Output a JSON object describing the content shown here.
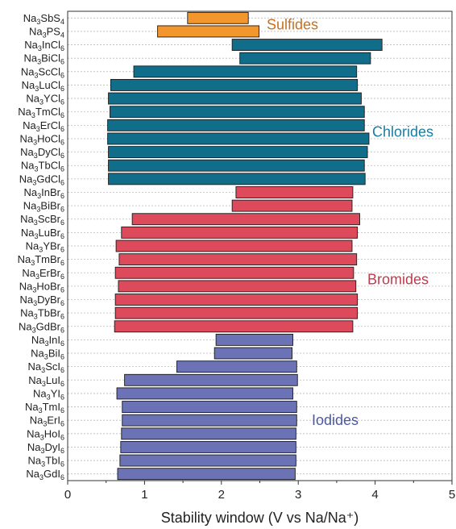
{
  "chart_data": {
    "type": "bar",
    "orientation": "horizontal-floating",
    "xlabel": "Stability window (V vs Na/Na⁺)",
    "xlim": [
      0,
      5
    ],
    "xticks": [
      "0",
      "1",
      "2",
      "3",
      "4",
      "5"
    ],
    "grid": "horizontal dotted",
    "groups": [
      {
        "name": "Sulfides",
        "color": "#F4962E",
        "label_color": "#C9701C",
        "items": [
          {
            "formula": "Na3SbS4",
            "base": "Na",
            "n1": "3",
            "mid": "SbS",
            "n2": "4",
            "low": 1.56,
            "high": 2.35
          },
          {
            "formula": "Na3PS4",
            "base": "Na",
            "n1": "3",
            "mid": "PS",
            "n2": "4",
            "low": 1.17,
            "high": 2.49
          }
        ]
      },
      {
        "name": "Chlorides",
        "color": "#116E8A",
        "label_color": "#1B7DA0",
        "items": [
          {
            "formula": "Na3InCl6",
            "base": "Na",
            "n1": "3",
            "mid": "InCl",
            "n2": "6",
            "low": 2.14,
            "high": 4.09
          },
          {
            "formula": "Na3BiCl6",
            "base": "Na",
            "n1": "3",
            "mid": "BiCl",
            "n2": "6",
            "low": 2.24,
            "high": 3.94
          },
          {
            "formula": "Na3ScCl6",
            "base": "Na",
            "n1": "3",
            "mid": "ScCl",
            "n2": "6",
            "low": 0.86,
            "high": 3.76
          },
          {
            "formula": "Na3LuCl6",
            "base": "Na",
            "n1": "3",
            "mid": "LuCl",
            "n2": "6",
            "low": 0.56,
            "high": 3.77
          },
          {
            "formula": "Na3YCl6",
            "base": "Na",
            "n1": "3",
            "mid": "YCl",
            "n2": "6",
            "low": 0.53,
            "high": 3.82
          },
          {
            "formula": "Na3TmCl6",
            "base": "Na",
            "n1": "3",
            "mid": "TmCl",
            "n2": "6",
            "low": 0.55,
            "high": 3.86
          },
          {
            "formula": "Na3ErCl6",
            "base": "Na",
            "n1": "3",
            "mid": "ErCl",
            "n2": "6",
            "low": 0.52,
            "high": 3.86
          },
          {
            "formula": "Na3HoCl6",
            "base": "Na",
            "n1": "3",
            "mid": "HoCl",
            "n2": "6",
            "low": 0.52,
            "high": 3.92
          },
          {
            "formula": "Na3DyCl6",
            "base": "Na",
            "n1": "3",
            "mid": "DyCl",
            "n2": "6",
            "low": 0.53,
            "high": 3.9
          },
          {
            "formula": "Na3TbCl6",
            "base": "Na",
            "n1": "3",
            "mid": "TbCl",
            "n2": "6",
            "low": 0.53,
            "high": 3.86
          },
          {
            "formula": "Na3GdCl6",
            "base": "Na",
            "n1": "3",
            "mid": "GdCl",
            "n2": "6",
            "low": 0.53,
            "high": 3.87
          }
        ]
      },
      {
        "name": "Bromides",
        "color": "#DC4A5C",
        "label_color": "#C23A4C",
        "items": [
          {
            "formula": "Na3InBr6",
            "base": "Na",
            "n1": "3",
            "mid": "InBr",
            "n2": "6",
            "low": 2.19,
            "high": 3.71
          },
          {
            "formula": "Na3BiBr6",
            "base": "Na",
            "n1": "3",
            "mid": "BiBr",
            "n2": "6",
            "low": 2.14,
            "high": 3.7
          },
          {
            "formula": "Na3ScBr6",
            "base": "Na",
            "n1": "3",
            "mid": "ScBr",
            "n2": "6",
            "low": 0.84,
            "high": 3.8
          },
          {
            "formula": "Na3LuBr6",
            "base": "Na",
            "n1": "3",
            "mid": "LuBr",
            "n2": "6",
            "low": 0.7,
            "high": 3.77
          },
          {
            "formula": "Na3YBr6",
            "base": "Na",
            "n1": "3",
            "mid": "YBr",
            "n2": "6",
            "low": 0.63,
            "high": 3.7
          },
          {
            "formula": "Na3TmBr6",
            "base": "Na",
            "n1": "3",
            "mid": "TmBr",
            "n2": "6",
            "low": 0.67,
            "high": 3.76
          },
          {
            "formula": "Na3ErBr6",
            "base": "Na",
            "n1": "3",
            "mid": "ErBr",
            "n2": "6",
            "low": 0.62,
            "high": 3.72
          },
          {
            "formula": "Na3HoBr6",
            "base": "Na",
            "n1": "3",
            "mid": "HoBr",
            "n2": "6",
            "low": 0.66,
            "high": 3.75
          },
          {
            "formula": "Na3DyBr6",
            "base": "Na",
            "n1": "3",
            "mid": "DyBr",
            "n2": "6",
            "low": 0.62,
            "high": 3.77
          },
          {
            "formula": "Na3TbBr6",
            "base": "Na",
            "n1": "3",
            "mid": "TbBr",
            "n2": "6",
            "low": 0.62,
            "high": 3.77
          },
          {
            "formula": "Na3GdBr6",
            "base": "Na",
            "n1": "3",
            "mid": "GdBr",
            "n2": "6",
            "low": 0.61,
            "high": 3.71
          }
        ]
      },
      {
        "name": "Iodides",
        "color": "#6B72B5",
        "label_color": "#4C58A6",
        "items": [
          {
            "formula": "Na3InI6",
            "base": "Na",
            "n1": "3",
            "mid": "InI",
            "n2": "6",
            "low": 1.93,
            "high": 2.93
          },
          {
            "formula": "Na3BiI6",
            "base": "Na",
            "n1": "3",
            "mid": "BiI",
            "n2": "6",
            "low": 1.91,
            "high": 2.92
          },
          {
            "formula": "Na3ScI6",
            "base": "Na",
            "n1": "3",
            "mid": "ScI",
            "n2": "6",
            "low": 1.42,
            "high": 2.98
          },
          {
            "formula": "Na3LuI6",
            "base": "Na",
            "n1": "3",
            "mid": "LuI",
            "n2": "6",
            "low": 0.74,
            "high": 2.99
          },
          {
            "formula": "Na3YI6",
            "base": "Na",
            "n1": "3",
            "mid": "YI",
            "n2": "6",
            "low": 0.64,
            "high": 2.93
          },
          {
            "formula": "Na3TmI6",
            "base": "Na",
            "n1": "3",
            "mid": "TmI",
            "n2": "6",
            "low": 0.71,
            "high": 2.98
          },
          {
            "formula": "Na3ErI6",
            "base": "Na",
            "n1": "3",
            "mid": "ErI",
            "n2": "6",
            "low": 0.71,
            "high": 2.98
          },
          {
            "formula": "Na3HoI6",
            "base": "Na",
            "n1": "3",
            "mid": "HoI",
            "n2": "6",
            "low": 0.7,
            "high": 2.97
          },
          {
            "formula": "Na3DyI6",
            "base": "Na",
            "n1": "3",
            "mid": "DyI",
            "n2": "6",
            "low": 0.69,
            "high": 2.97
          },
          {
            "formula": "Na3TbI6",
            "base": "Na",
            "n1": "3",
            "mid": "TbI",
            "n2": "6",
            "low": 0.68,
            "high": 2.97
          },
          {
            "formula": "Na3GdI6",
            "base": "Na",
            "n1": "3",
            "mid": "GdI",
            "n2": "6",
            "low": 0.65,
            "high": 2.96
          }
        ]
      }
    ]
  }
}
